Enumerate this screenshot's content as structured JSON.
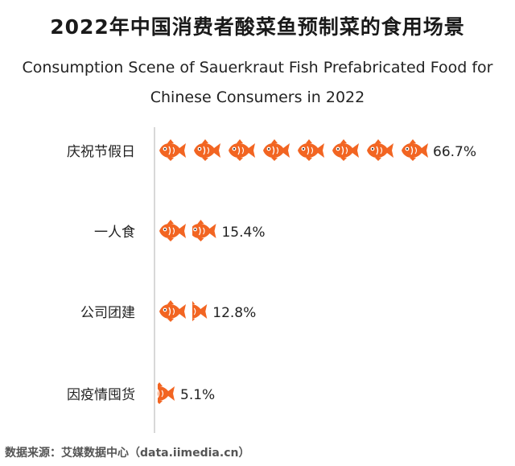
{
  "title": "2022年中国消费者酸菜鱼预制菜的食用场景",
  "subtitle": "Consumption Scene of Sauerkraut Fish Prefabricated Food for Chinese Consumers in 2022",
  "source": "数据来源：艾媒数据中心（data.iimedia.cn）",
  "colors": {
    "fish": "#f26522",
    "axis": "#cccccc"
  },
  "chart_data": {
    "type": "bar",
    "style": "pictorial-fish-icons",
    "categories": [
      "庆祝节假日",
      "一人食",
      "公司团建",
      "因疫情囤货"
    ],
    "values": [
      66.7,
      15.4,
      12.8,
      5.1
    ],
    "value_labels": [
      "66.7%",
      "15.4%",
      "12.8%",
      "5.1%"
    ],
    "unit": "%",
    "xlim": [
      0,
      70
    ]
  }
}
